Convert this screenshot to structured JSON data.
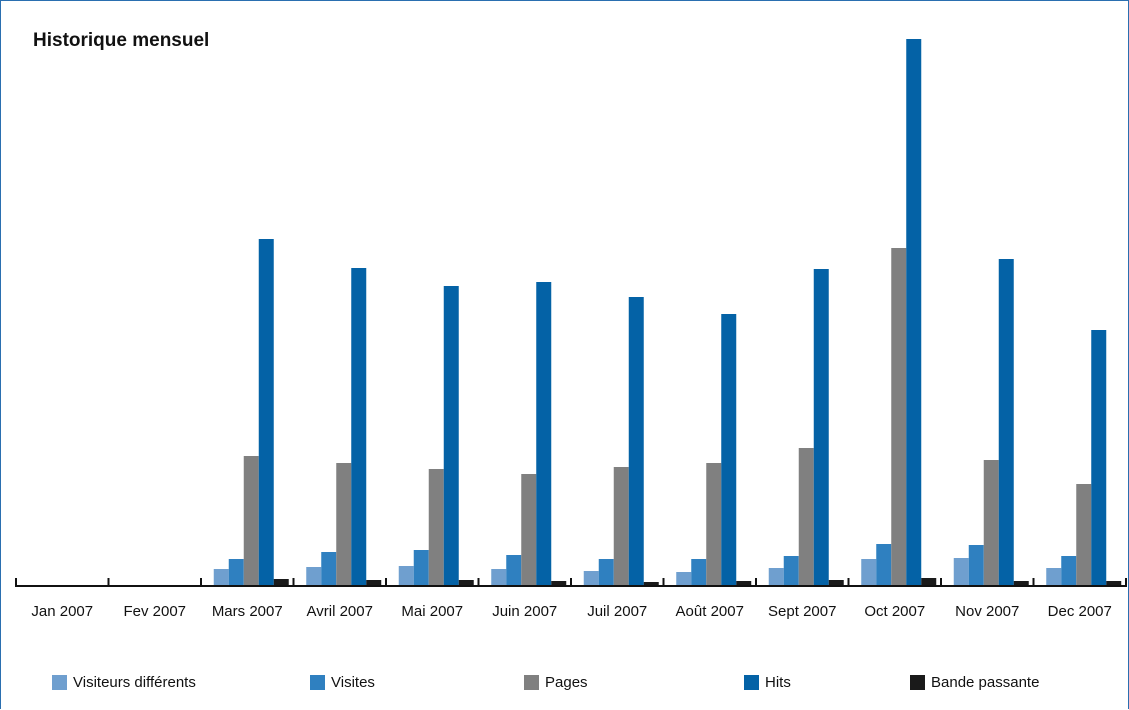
{
  "chart_data": {
    "type": "bar",
    "title": "Historique mensuel",
    "categories": [
      "Jan 2007",
      "Fev 2007",
      "Mars 2007",
      "Avril 2007",
      "Mai 2007",
      "Juin 2007",
      "Juil 2007",
      "Août 2007",
      "Sept 2007",
      "Oct 2007",
      "Nov 2007",
      "Dec 2007"
    ],
    "series": [
      {
        "name": "Visiteurs différents",
        "color": "#6f9fcf",
        "values": [
          0,
          0,
          16,
          18,
          19,
          16,
          14,
          13,
          17,
          26,
          27,
          17
        ]
      },
      {
        "name": "Visites",
        "color": "#2f80c0",
        "values": [
          0,
          0,
          26,
          33,
          35,
          30,
          26,
          26,
          29,
          41,
          40,
          29
        ]
      },
      {
        "name": "Pages",
        "color": "#808080",
        "values": [
          0,
          0,
          129,
          122,
          116,
          111,
          118,
          122,
          137,
          337,
          125,
          101
        ]
      },
      {
        "name": "Hits",
        "color": "#0462a6",
        "values": [
          0,
          0,
          346,
          317,
          299,
          303,
          288,
          271,
          316,
          546,
          326,
          255
        ]
      },
      {
        "name": "Bande passante",
        "color": "#1a1a1a",
        "values": [
          0,
          0,
          6,
          5,
          5,
          4,
          3,
          4,
          5,
          7,
          4,
          4
        ]
      }
    ],
    "ylim": [
      0,
      550
    ],
    "grid": false,
    "legend_position": "bottom"
  }
}
